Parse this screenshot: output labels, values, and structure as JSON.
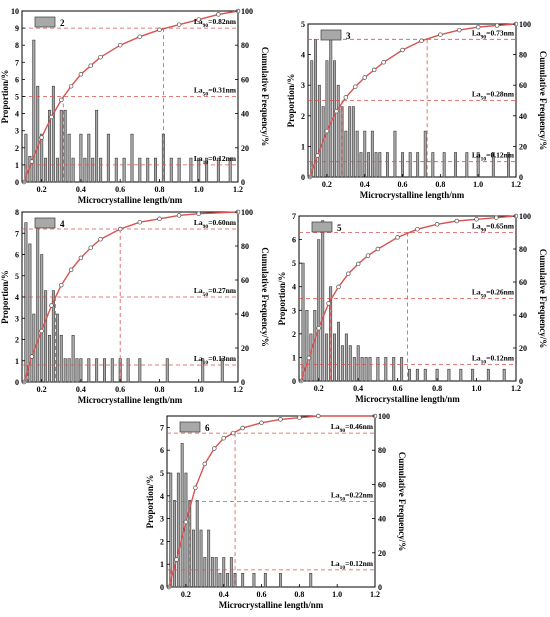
{
  "common": {
    "xlabel": "Microcrystalline length/nm",
    "ylabel_left": "Proportion/%",
    "ylabel_right": "Cumulative Frequency/%",
    "x_ticks": [
      "0.2",
      "0.4",
      "0.6",
      "0.8",
      "1.0",
      "1.2"
    ],
    "right_ticks": [
      "0",
      "20",
      "40",
      "60",
      "80",
      "100"
    ],
    "colors": {
      "bar_fill": "#a8a8a8",
      "bar_stroke": "#3a3a3a",
      "curve": "#d9534f",
      "marker": "#555555",
      "guide": "#d9534f"
    }
  },
  "chart_data": [
    {
      "panel": "2",
      "type": "bar",
      "xlim": [
        0.1,
        1.2
      ],
      "ylim_left": [
        0,
        10
      ],
      "ylim_right": [
        0,
        100
      ],
      "left_ticks": [
        "0",
        "1",
        "2",
        "3",
        "4",
        "5",
        "6",
        "7",
        "8",
        "9",
        "10"
      ],
      "annotations": [
        {
          "sub": "90",
          "text": "=0.82nm",
          "x": 0.82,
          "cum": 90
        },
        {
          "sub": "50",
          "text": "=0.31nm",
          "x": 0.31,
          "cum": 50
        },
        {
          "sub": "10",
          "text": "=0.12nm",
          "x": 0.12,
          "cum": 10
        }
      ],
      "bars": [
        [
          0.12,
          2.8
        ],
        [
          0.14,
          1.5
        ],
        [
          0.16,
          8.3
        ],
        [
          0.18,
          5.6
        ],
        [
          0.2,
          2.8
        ],
        [
          0.22,
          1.4
        ],
        [
          0.24,
          4.2
        ],
        [
          0.26,
          5.6
        ],
        [
          0.28,
          1.4
        ],
        [
          0.3,
          4.2
        ],
        [
          0.32,
          4.2
        ],
        [
          0.34,
          2.8
        ],
        [
          0.36,
          1.4
        ],
        [
          0.4,
          2.8
        ],
        [
          0.42,
          1.4
        ],
        [
          0.44,
          2.8
        ],
        [
          0.46,
          1.4
        ],
        [
          0.48,
          4.2
        ],
        [
          0.5,
          1.4
        ],
        [
          0.54,
          2.8
        ],
        [
          0.58,
          1.4
        ],
        [
          0.62,
          1.4
        ],
        [
          0.66,
          2.8
        ],
        [
          0.7,
          1.4
        ],
        [
          0.74,
          1.4
        ],
        [
          0.78,
          1.4
        ],
        [
          0.82,
          2.8
        ],
        [
          0.86,
          1.4
        ],
        [
          0.9,
          1.4
        ],
        [
          0.96,
          1.4
        ],
        [
          1.0,
          1.4
        ],
        [
          1.04,
          1.4
        ],
        [
          1.1,
          1.4
        ],
        [
          1.16,
          1.4
        ]
      ],
      "cumulative": [
        [
          0.11,
          0
        ],
        [
          0.15,
          12
        ],
        [
          0.2,
          26
        ],
        [
          0.25,
          38
        ],
        [
          0.3,
          48
        ],
        [
          0.35,
          56
        ],
        [
          0.4,
          63
        ],
        [
          0.45,
          68
        ],
        [
          0.5,
          73
        ],
        [
          0.6,
          80
        ],
        [
          0.7,
          85
        ],
        [
          0.8,
          89
        ],
        [
          0.9,
          92
        ],
        [
          1.0,
          95
        ],
        [
          1.1,
          98
        ],
        [
          1.2,
          100
        ]
      ]
    },
    {
      "panel": "3",
      "type": "bar",
      "xlim": [
        0.1,
        1.2
      ],
      "ylim_left": [
        0,
        5
      ],
      "ylim_right": [
        0,
        100
      ],
      "left_ticks": [
        "0",
        "1",
        "2",
        "3",
        "4",
        "5"
      ],
      "annotations": [
        {
          "sub": "90",
          "text": "=0.73nm",
          "x": 0.73,
          "cum": 90
        },
        {
          "sub": "50",
          "text": "=0.28nm",
          "x": 0.28,
          "cum": 50
        },
        {
          "sub": "10",
          "text": "=0.12nm",
          "x": 0.12,
          "cum": 10
        }
      ],
      "bars": [
        [
          0.12,
          3.8
        ],
        [
          0.14,
          4.5
        ],
        [
          0.16,
          3.0
        ],
        [
          0.18,
          2.3
        ],
        [
          0.2,
          3.8
        ],
        [
          0.22,
          4.5
        ],
        [
          0.24,
          3.8
        ],
        [
          0.26,
          3.0
        ],
        [
          0.28,
          2.3
        ],
        [
          0.3,
          1.5
        ],
        [
          0.32,
          2.3
        ],
        [
          0.34,
          2.3
        ],
        [
          0.36,
          1.5
        ],
        [
          0.38,
          0.8
        ],
        [
          0.4,
          1.5
        ],
        [
          0.42,
          0.8
        ],
        [
          0.44,
          1.5
        ],
        [
          0.46,
          0.8
        ],
        [
          0.48,
          0.8
        ],
        [
          0.52,
          0.8
        ],
        [
          0.56,
          1.5
        ],
        [
          0.6,
          0.8
        ],
        [
          0.64,
          0.8
        ],
        [
          0.68,
          0.8
        ],
        [
          0.72,
          1.5
        ],
        [
          0.76,
          0.8
        ],
        [
          0.82,
          0.8
        ],
        [
          0.88,
          0.8
        ],
        [
          0.94,
          0.8
        ],
        [
          1.0,
          0.8
        ],
        [
          1.08,
          0.8
        ],
        [
          1.16,
          0.8
        ]
      ],
      "cumulative": [
        [
          0.11,
          0
        ],
        [
          0.15,
          14
        ],
        [
          0.2,
          30
        ],
        [
          0.25,
          43
        ],
        [
          0.3,
          52
        ],
        [
          0.35,
          59
        ],
        [
          0.4,
          65
        ],
        [
          0.45,
          70
        ],
        [
          0.5,
          75
        ],
        [
          0.6,
          83
        ],
        [
          0.7,
          89
        ],
        [
          0.8,
          93
        ],
        [
          0.9,
          96
        ],
        [
          1.0,
          98
        ],
        [
          1.1,
          99
        ],
        [
          1.2,
          100
        ]
      ]
    },
    {
      "panel": "4",
      "type": "bar",
      "xlim": [
        0.1,
        1.2
      ],
      "ylim_left": [
        0,
        8
      ],
      "ylim_right": [
        0,
        100
      ],
      "left_ticks": [
        "0",
        "1",
        "2",
        "3",
        "4",
        "5",
        "6",
        "7",
        "8"
      ],
      "annotations": [
        {
          "sub": "90",
          "text": "=0.60nm",
          "x": 0.6,
          "cum": 90
        },
        {
          "sub": "50",
          "text": "=0.27nm",
          "x": 0.27,
          "cum": 50
        },
        {
          "sub": "10",
          "text": "=0.13nm",
          "x": 0.13,
          "cum": 10
        }
      ],
      "bars": [
        [
          0.12,
          7.5
        ],
        [
          0.14,
          6.5
        ],
        [
          0.16,
          3.2
        ],
        [
          0.18,
          7.5
        ],
        [
          0.2,
          6.0
        ],
        [
          0.22,
          4.3
        ],
        [
          0.24,
          2.2
        ],
        [
          0.26,
          4.3
        ],
        [
          0.28,
          3.2
        ],
        [
          0.3,
          2.2
        ],
        [
          0.32,
          1.1
        ],
        [
          0.34,
          1.1
        ],
        [
          0.36,
          2.2
        ],
        [
          0.38,
          1.1
        ],
        [
          0.4,
          1.1
        ],
        [
          0.44,
          1.1
        ],
        [
          0.48,
          1.1
        ],
        [
          0.52,
          1.1
        ],
        [
          0.56,
          1.1
        ],
        [
          0.6,
          1.1
        ],
        [
          0.64,
          1.1
        ],
        [
          0.7,
          1.1
        ],
        [
          0.84,
          1.1
        ],
        [
          1.02,
          1.1
        ],
        [
          1.12,
          1.1
        ]
      ],
      "cumulative": [
        [
          0.11,
          0
        ],
        [
          0.15,
          15
        ],
        [
          0.2,
          30
        ],
        [
          0.25,
          45
        ],
        [
          0.3,
          57
        ],
        [
          0.35,
          66
        ],
        [
          0.4,
          73
        ],
        [
          0.45,
          79
        ],
        [
          0.5,
          84
        ],
        [
          0.6,
          90
        ],
        [
          0.7,
          94
        ],
        [
          0.8,
          96
        ],
        [
          0.9,
          98
        ],
        [
          1.0,
          99
        ],
        [
          1.2,
          100
        ]
      ]
    },
    {
      "panel": "5",
      "type": "bar",
      "xlim": [
        0.1,
        1.2
      ],
      "ylim_left": [
        0,
        7
      ],
      "ylim_right": [
        0,
        100
      ],
      "left_ticks": [
        "0",
        "1",
        "2",
        "3",
        "4",
        "5",
        "6",
        "7"
      ],
      "annotations": [
        {
          "sub": "90",
          "text": "=0.65nm",
          "x": 0.65,
          "cum": 90
        },
        {
          "sub": "50",
          "text": "=0.26nm",
          "x": 0.26,
          "cum": 50
        },
        {
          "sub": "10",
          "text": "=0.12nm",
          "x": 0.12,
          "cum": 10
        }
      ],
      "bars": [
        [
          0.12,
          5.0
        ],
        [
          0.14,
          3.0
        ],
        [
          0.16,
          2.0
        ],
        [
          0.18,
          3.0
        ],
        [
          0.2,
          6.0
        ],
        [
          0.22,
          6.8
        ],
        [
          0.24,
          2.0
        ],
        [
          0.26,
          4.0
        ],
        [
          0.28,
          2.0
        ],
        [
          0.3,
          2.5
        ],
        [
          0.32,
          1.5
        ],
        [
          0.34,
          2.0
        ],
        [
          0.36,
          1.5
        ],
        [
          0.38,
          1.0
        ],
        [
          0.4,
          1.5
        ],
        [
          0.42,
          1.0
        ],
        [
          0.44,
          1.0
        ],
        [
          0.46,
          1.0
        ],
        [
          0.5,
          1.0
        ],
        [
          0.54,
          1.0
        ],
        [
          0.58,
          1.0
        ],
        [
          0.62,
          1.0
        ],
        [
          0.66,
          0.5
        ],
        [
          0.7,
          0.5
        ],
        [
          0.74,
          0.5
        ],
        [
          0.8,
          0.5
        ],
        [
          0.86,
          0.5
        ],
        [
          0.92,
          0.5
        ],
        [
          0.98,
          0.5
        ],
        [
          1.06,
          0.5
        ],
        [
          1.14,
          0.5
        ]
      ],
      "cumulative": [
        [
          0.11,
          0
        ],
        [
          0.15,
          14
        ],
        [
          0.2,
          32
        ],
        [
          0.25,
          47
        ],
        [
          0.3,
          57
        ],
        [
          0.35,
          65
        ],
        [
          0.4,
          71
        ],
        [
          0.45,
          76
        ],
        [
          0.5,
          80
        ],
        [
          0.6,
          87
        ],
        [
          0.7,
          92
        ],
        [
          0.8,
          95
        ],
        [
          0.9,
          97
        ],
        [
          1.0,
          98
        ],
        [
          1.1,
          99
        ],
        [
          1.2,
          100
        ]
      ]
    },
    {
      "panel": "6",
      "type": "bar",
      "xlim": [
        0.1,
        1.2
      ],
      "ylim_left": [
        0,
        7.5
      ],
      "ylim_right": [
        0,
        100
      ],
      "left_ticks": [
        "0",
        "1",
        "2",
        "3",
        "4",
        "5",
        "6",
        "7"
      ],
      "annotations": [
        {
          "sub": "90",
          "text": "=0.46nm",
          "x": 0.46,
          "cum": 90
        },
        {
          "sub": "50",
          "text": "=0.22nm",
          "x": 0.22,
          "cum": 50
        },
        {
          "sub": "10",
          "text": "=0.12nm",
          "x": 0.12,
          "cum": 10
        }
      ],
      "bars": [
        [
          0.12,
          5.0
        ],
        [
          0.14,
          3.8
        ],
        [
          0.16,
          5.0
        ],
        [
          0.18,
          6.3
        ],
        [
          0.2,
          5.0
        ],
        [
          0.22,
          3.8
        ],
        [
          0.24,
          2.5
        ],
        [
          0.26,
          3.8
        ],
        [
          0.28,
          2.5
        ],
        [
          0.3,
          1.3
        ],
        [
          0.32,
          2.5
        ],
        [
          0.34,
          1.3
        ],
        [
          0.36,
          1.3
        ],
        [
          0.38,
          0.6
        ],
        [
          0.4,
          1.3
        ],
        [
          0.42,
          0.6
        ],
        [
          0.44,
          1.3
        ],
        [
          0.46,
          0.6
        ],
        [
          0.5,
          0.6
        ],
        [
          0.56,
          0.6
        ],
        [
          0.62,
          0.6
        ],
        [
          0.7,
          0.6
        ],
        [
          0.86,
          0.6
        ]
      ],
      "cumulative": [
        [
          0.11,
          0
        ],
        [
          0.15,
          16
        ],
        [
          0.2,
          38
        ],
        [
          0.25,
          58
        ],
        [
          0.3,
          72
        ],
        [
          0.35,
          81
        ],
        [
          0.4,
          87
        ],
        [
          0.45,
          90
        ],
        [
          0.5,
          93
        ],
        [
          0.6,
          96
        ],
        [
          0.7,
          98
        ],
        [
          0.8,
          99
        ],
        [
          0.9,
          100
        ],
        [
          1.2,
          100
        ]
      ]
    }
  ]
}
